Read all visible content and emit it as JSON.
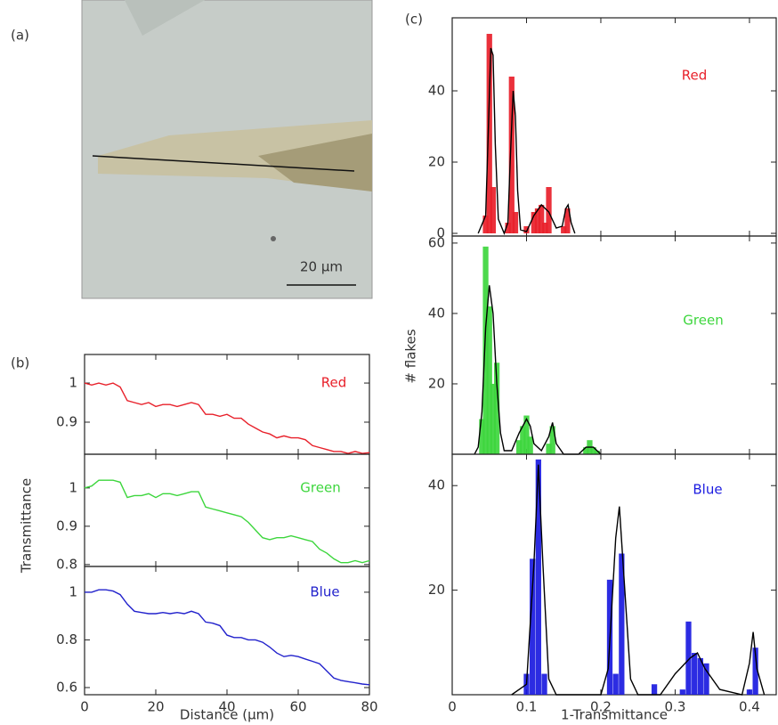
{
  "labels": {
    "a": "(a)",
    "b": "(b)",
    "c": "(c)"
  },
  "image": {
    "scale_bar": "20 µm"
  },
  "chart_data": [
    {
      "type": "line",
      "xlim": [
        0,
        80
      ],
      "ylim": [
        0.818,
        1.073
      ],
      "yticks": [
        0.9,
        1
      ],
      "x": [
        0,
        2,
        4,
        6,
        8,
        10,
        12,
        14,
        16,
        18,
        20,
        22,
        24,
        26,
        28,
        30,
        32,
        34,
        36,
        38,
        40,
        42,
        44,
        46,
        48,
        50,
        52,
        54,
        56,
        58,
        60,
        62,
        64,
        66,
        68,
        70,
        72,
        74,
        76,
        78,
        80
      ],
      "series": [
        {
          "name": "Red",
          "color": "#e8202a",
          "values": [
            1.0,
            0.995,
            1.0,
            0.995,
            1.0,
            0.99,
            0.955,
            0.95,
            0.945,
            0.95,
            0.94,
            0.945,
            0.945,
            0.94,
            0.945,
            0.95,
            0.945,
            0.92,
            0.92,
            0.915,
            0.92,
            0.91,
            0.91,
            0.895,
            0.885,
            0.875,
            0.87,
            0.86,
            0.865,
            0.86,
            0.86,
            0.855,
            0.84,
            0.835,
            0.83,
            0.825,
            0.825,
            0.82,
            0.825,
            0.82,
            0.822
          ]
        }
      ]
    },
    {
      "type": "line",
      "xlim": [
        0,
        80
      ],
      "ylim": [
        0.795,
        1.088
      ],
      "yticks": [
        0.8,
        0.9,
        1
      ],
      "ylabel": "Transmittance",
      "x": [
        0,
        2,
        4,
        6,
        8,
        10,
        12,
        14,
        16,
        18,
        20,
        22,
        24,
        26,
        28,
        30,
        32,
        34,
        36,
        38,
        40,
        42,
        44,
        46,
        48,
        50,
        52,
        54,
        56,
        58,
        60,
        62,
        64,
        66,
        68,
        70,
        72,
        74,
        76,
        78,
        80
      ],
      "series": [
        {
          "name": "Green",
          "color": "#3dd63d",
          "values": [
            1.0,
            1.005,
            1.02,
            1.02,
            1.02,
            1.015,
            0.975,
            0.98,
            0.98,
            0.985,
            0.975,
            0.985,
            0.985,
            0.98,
            0.985,
            0.99,
            0.99,
            0.95,
            0.945,
            0.94,
            0.935,
            0.93,
            0.925,
            0.91,
            0.89,
            0.87,
            0.865,
            0.87,
            0.87,
            0.875,
            0.87,
            0.865,
            0.86,
            0.84,
            0.83,
            0.815,
            0.805,
            0.805,
            0.81,
            0.805,
            0.81
          ]
        }
      ]
    },
    {
      "type": "line",
      "xlim": [
        0,
        80
      ],
      "ylim": [
        0.57,
        1.108
      ],
      "yticks": [
        0.6,
        0.8,
        1
      ],
      "xticks": [
        0,
        20,
        40,
        60,
        80
      ],
      "xlabel": "Distance (µm)",
      "x": [
        0,
        2,
        4,
        6,
        8,
        10,
        12,
        14,
        16,
        18,
        20,
        22,
        24,
        26,
        28,
        30,
        32,
        34,
        36,
        38,
        40,
        42,
        44,
        46,
        48,
        50,
        52,
        54,
        56,
        58,
        60,
        62,
        64,
        66,
        68,
        70,
        72,
        74,
        76,
        78,
        80
      ],
      "series": [
        {
          "name": "Blue",
          "color": "#2222cc",
          "values": [
            1.0,
            1.0,
            1.01,
            1.01,
            1.005,
            0.99,
            0.95,
            0.92,
            0.915,
            0.91,
            0.91,
            0.915,
            0.91,
            0.915,
            0.91,
            0.92,
            0.91,
            0.875,
            0.87,
            0.86,
            0.82,
            0.81,
            0.81,
            0.8,
            0.8,
            0.79,
            0.77,
            0.745,
            0.73,
            0.735,
            0.73,
            0.72,
            0.71,
            0.7,
            0.67,
            0.64,
            0.63,
            0.625,
            0.62,
            0.615,
            0.612
          ]
        }
      ]
    },
    {
      "type": "bar",
      "xlim": [
        0,
        0.436
      ],
      "ylim": [
        -0.75,
        60.5
      ],
      "yticks": [
        0,
        20,
        40
      ],
      "series": [
        {
          "name": "Red",
          "color": "#e8202a",
          "x": [
            0.045,
            0.05,
            0.055,
            0.075,
            0.08,
            0.085,
            0.1,
            0.11,
            0.115,
            0.12,
            0.125,
            0.13,
            0.15,
            0.155
          ],
          "values": [
            5,
            56,
            13,
            3,
            44,
            6,
            2,
            6,
            7,
            8,
            3,
            13,
            2,
            7
          ]
        },
        {
          "type": "line",
          "color": "#000000",
          "x": [
            0.035,
            0.045,
            0.048,
            0.052,
            0.055,
            0.058,
            0.062,
            0.07,
            0.075,
            0.078,
            0.082,
            0.085,
            0.088,
            0.092,
            0.1,
            0.11,
            0.12,
            0.13,
            0.14,
            0.148,
            0.153,
            0.156,
            0.16,
            0.165
          ],
          "values": [
            0,
            5,
            25,
            52,
            50,
            25,
            4,
            0,
            3,
            20,
            40,
            33,
            12,
            1,
            0.5,
            5,
            8,
            6,
            1.5,
            2,
            7,
            8,
            3,
            0
          ]
        }
      ]
    },
    {
      "type": "bar",
      "xlim": [
        0,
        0.436
      ],
      "ylim": [
        0,
        62
      ],
      "yticks": [
        20,
        40,
        60
      ],
      "ylabel": "# flakes",
      "series": [
        {
          "name": "Green",
          "color": "#3dd63d",
          "x": [
            0.04,
            0.045,
            0.05,
            0.055,
            0.06,
            0.09,
            0.095,
            0.1,
            0.105,
            0.13,
            0.135,
            0.18,
            0.185,
            0.19,
            0.195
          ],
          "values": [
            10,
            59,
            42,
            20,
            26,
            4,
            8,
            11,
            5,
            3,
            8,
            2,
            4,
            2,
            1
          ]
        },
        {
          "type": "line",
          "color": "#000000",
          "x": [
            0.03,
            0.035,
            0.04,
            0.045,
            0.05,
            0.055,
            0.06,
            0.065,
            0.07,
            0.08,
            0.09,
            0.1,
            0.105,
            0.11,
            0.12,
            0.13,
            0.135,
            0.14,
            0.15,
            0.17,
            0.18,
            0.19,
            0.2
          ],
          "values": [
            0,
            2,
            12,
            36,
            48,
            40,
            20,
            6,
            1,
            1,
            6,
            10,
            8,
            3,
            1,
            5,
            9,
            3,
            0,
            0,
            2,
            2,
            0
          ]
        }
      ]
    },
    {
      "type": "bar",
      "xlim": [
        0,
        0.436
      ],
      "ylim": [
        0,
        46
      ],
      "yticks": [
        20,
        40
      ],
      "xticks": [
        0,
        0.1,
        0.2,
        0.3,
        0.4
      ],
      "xlabel": "1-Transmittance",
      "series": [
        {
          "name": "Blue",
          "color": "#1a1ae0",
          "x": [
            0.1,
            0.108,
            0.116,
            0.124,
            0.212,
            0.22,
            0.228,
            0.272,
            0.31,
            0.318,
            0.326,
            0.334,
            0.342,
            0.4,
            0.408
          ],
          "values": [
            4,
            26,
            45,
            4,
            22,
            4,
            27,
            2,
            1,
            14,
            8,
            7,
            6,
            1,
            9
          ]
        },
        {
          "type": "line",
          "color": "#000000",
          "x": [
            0.08,
            0.1,
            0.11,
            0.116,
            0.122,
            0.13,
            0.14,
            0.2,
            0.21,
            0.22,
            0.225,
            0.23,
            0.24,
            0.25,
            0.28,
            0.3,
            0.32,
            0.33,
            0.34,
            0.36,
            0.39,
            0.4,
            0.405,
            0.41,
            0.42
          ],
          "values": [
            0,
            2,
            25,
            44,
            25,
            3,
            0,
            0,
            5,
            30,
            36,
            25,
            3,
            0,
            0,
            4,
            7,
            8,
            5,
            1,
            0,
            6,
            12,
            5,
            0
          ]
        }
      ]
    }
  ]
}
